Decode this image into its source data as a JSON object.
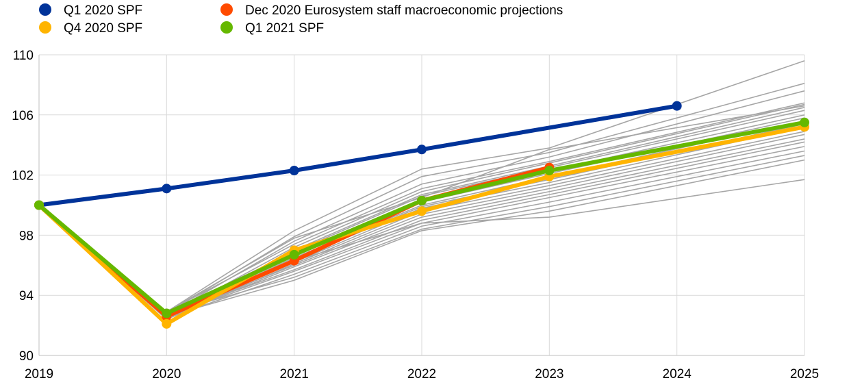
{
  "chart_data": {
    "type": "line",
    "title": "",
    "xlabel": "",
    "ylabel": "",
    "x": [
      2019,
      2020,
      2021,
      2022,
      2023,
      2024,
      2025
    ],
    "x_tick_labels": [
      "2019",
      "2020",
      "2021",
      "2022",
      "2023",
      "2024",
      "2025"
    ],
    "y_ticks": [
      90,
      94,
      98,
      102,
      106,
      110
    ],
    "y_tick_labels": [
      "90",
      "94",
      "98",
      "102",
      "106",
      "110"
    ],
    "ylim": [
      90,
      110
    ],
    "xlim": [
      2019,
      2025
    ],
    "grid": true,
    "legend_position": "top",
    "series": [
      {
        "name": "Q1 2020 SPF",
        "color": "#003399",
        "x": [
          2019,
          2020,
          2021,
          2022,
          2023,
          2024
        ],
        "values": [
          100,
          101.1,
          102.3,
          103.7,
          null,
          106.6
        ],
        "markers": [
          true,
          true,
          true,
          true,
          false,
          true
        ]
      },
      {
        "name": "Dec 2020 Eurosystem staff macroeconomic projections",
        "color": "#ff4b00",
        "x": [
          2019,
          2020,
          2021,
          2022,
          2023
        ],
        "values": [
          100,
          92.6,
          96.3,
          100.3,
          102.5
        ],
        "markers": [
          true,
          true,
          true,
          true,
          true
        ]
      },
      {
        "name": "Q4 2020 SPF",
        "color": "#ffb400",
        "x": [
          2019,
          2020,
          2021,
          2022,
          2023,
          2024,
          2025
        ],
        "values": [
          100,
          92.1,
          97.0,
          99.6,
          101.9,
          null,
          105.2
        ],
        "markers": [
          true,
          true,
          true,
          true,
          true,
          false,
          true
        ]
      },
      {
        "name": "Q1 2021 SPF",
        "color": "#65b800",
        "x": [
          2019,
          2020,
          2021,
          2022,
          2023,
          2024,
          2025
        ],
        "values": [
          100,
          92.8,
          96.7,
          100.3,
          102.3,
          null,
          105.5
        ],
        "markers": [
          true,
          true,
          true,
          true,
          true,
          false,
          true
        ]
      }
    ],
    "individual_forecasts": {
      "color": "#a6a6a6",
      "x": [
        2019,
        2020,
        2021,
        2022,
        2023,
        2025
      ],
      "lines": [
        [
          100,
          92.9,
          98.3,
          102.4,
          103.8,
          109.6
        ],
        [
          100,
          92.8,
          97.9,
          101.9,
          103.5,
          108.1
        ],
        [
          100,
          92.7,
          97.6,
          101.4,
          103.2,
          107.6
        ],
        [
          100,
          92.9,
          97.4,
          101.1,
          102.9,
          106.8
        ],
        [
          100,
          92.6,
          97.2,
          100.9,
          102.8,
          106.7
        ],
        [
          100,
          92.5,
          97.0,
          100.7,
          102.6,
          106.5
        ],
        [
          100,
          92.8,
          96.9,
          100.6,
          102.5,
          106.3
        ],
        [
          100,
          92.4,
          96.8,
          100.4,
          102.3,
          106.0
        ],
        [
          100,
          92.7,
          96.6,
          100.2,
          102.1,
          105.8
        ],
        [
          100,
          92.6,
          96.5,
          100.0,
          101.9,
          105.6
        ],
        [
          100,
          92.5,
          96.4,
          99.9,
          101.7,
          105.4
        ],
        [
          100,
          92.8,
          96.2,
          99.8,
          101.5,
          105.2
        ],
        [
          100,
          92.4,
          96.1,
          99.6,
          101.3,
          104.9
        ],
        [
          100,
          92.6,
          96.0,
          99.4,
          101.1,
          104.7
        ],
        [
          100,
          92.5,
          95.9,
          99.2,
          100.9,
          104.4
        ],
        [
          100,
          92.7,
          95.7,
          99.0,
          100.7,
          104.2
        ],
        [
          100,
          92.6,
          95.6,
          98.8,
          100.5,
          103.9
        ],
        [
          100,
          92.5,
          95.4,
          98.6,
          100.2,
          103.6
        ],
        [
          100,
          92.8,
          95.2,
          98.4,
          99.9,
          103.3
        ],
        [
          100,
          92.6,
          95.0,
          98.3,
          99.6,
          103.0
        ],
        [
          100,
          92.4,
          96.3,
          98.8,
          99.2,
          101.7
        ],
        [
          100,
          92.9,
          97.8,
          100.5,
          103.7,
          106.6
        ]
      ]
    }
  }
}
